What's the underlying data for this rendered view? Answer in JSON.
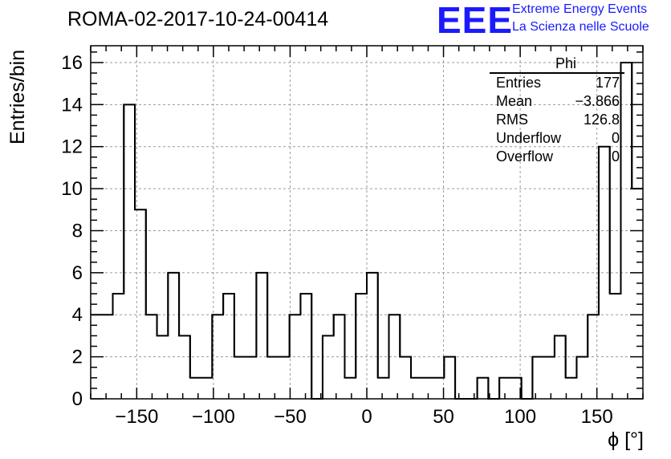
{
  "chart_data": {
    "type": "histogram",
    "title": "ROMA-02-2017-10-24-00414",
    "xlabel": "ϕ [°]",
    "ylabel": "Entries/bin",
    "xlim": [
      -180,
      180
    ],
    "ylim": [
      0,
      16.8
    ],
    "xticks": [
      -150,
      -100,
      -50,
      0,
      50,
      100,
      150
    ],
    "xtick_labels": [
      "−150",
      "−100",
      "−50",
      "0",
      "50",
      "100",
      "150"
    ],
    "yticks": [
      0,
      2,
      4,
      6,
      8,
      10,
      12,
      14,
      16
    ],
    "bin_width": 7.2,
    "bin_start": -180,
    "counts": [
      4,
      4,
      5,
      14,
      9,
      4,
      3,
      6,
      3,
      1,
      1,
      4,
      5,
      2,
      2,
      6,
      2,
      2,
      4,
      5,
      0,
      3,
      4,
      1,
      5,
      6,
      1,
      4,
      2,
      1,
      1,
      1,
      2,
      0,
      0,
      1,
      0,
      1,
      1,
      0,
      2,
      2,
      3,
      1,
      2,
      4,
      12,
      5,
      16,
      10
    ],
    "grid": true,
    "color": "#000000"
  },
  "stats": {
    "title": "Phi",
    "rows": [
      {
        "label": "Entries",
        "value": "177"
      },
      {
        "label": "Mean",
        "value": "−3.866"
      },
      {
        "label": "RMS",
        "value": "126.8"
      },
      {
        "label": "Underflow",
        "value": "0"
      },
      {
        "label": "Overflow",
        "value": "0"
      }
    ]
  },
  "logo": {
    "text": "EEE",
    "line1": "Extreme Energy Events",
    "line2": "La Scienza nelle Scuole",
    "color": "#1a1aff"
  }
}
